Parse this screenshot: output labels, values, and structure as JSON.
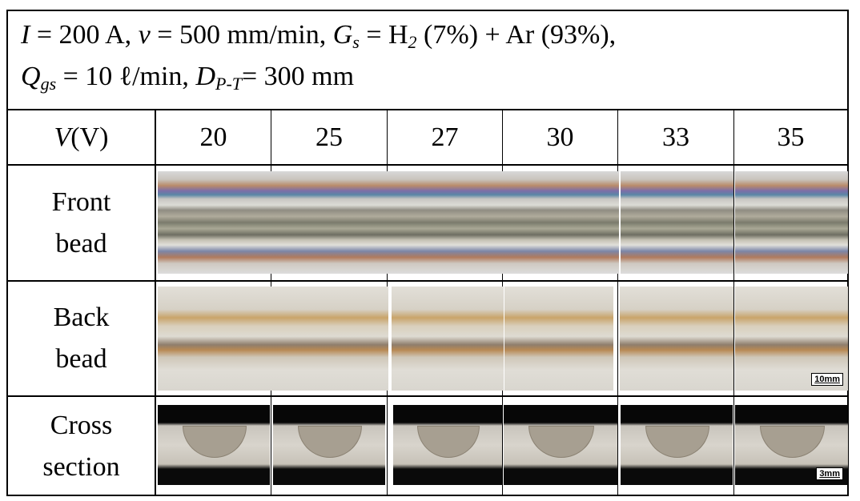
{
  "header": {
    "I_sym": "I",
    "I_val": " = 200 A, ",
    "v_sym": "v",
    "v_val": " = 500 mm/min, ",
    "G_sym": "G",
    "G_sub": "s",
    "G_val": " = H",
    "G_h2sub": "2",
    "G_rest": " (7%) + Ar (93%),",
    "Q_sym": "Q",
    "Q_sub": "gs",
    "Q_val": " = 10 ℓ/min, ",
    "D_sym": "D",
    "D_sub": "P-T",
    "D_val": "= 300 mm"
  },
  "voltage_header": {
    "sym": "V",
    "unit": " (V)"
  },
  "voltages": [
    "20",
    "25",
    "27",
    "30",
    "33",
    "35"
  ],
  "rows": {
    "front": {
      "line1": "Front",
      "line2": "bead"
    },
    "back": {
      "line1": "Back",
      "line2": "bead",
      "scale": "10mm"
    },
    "cross": {
      "line1": "Cross",
      "line2": "section",
      "scale": "3mm"
    }
  }
}
